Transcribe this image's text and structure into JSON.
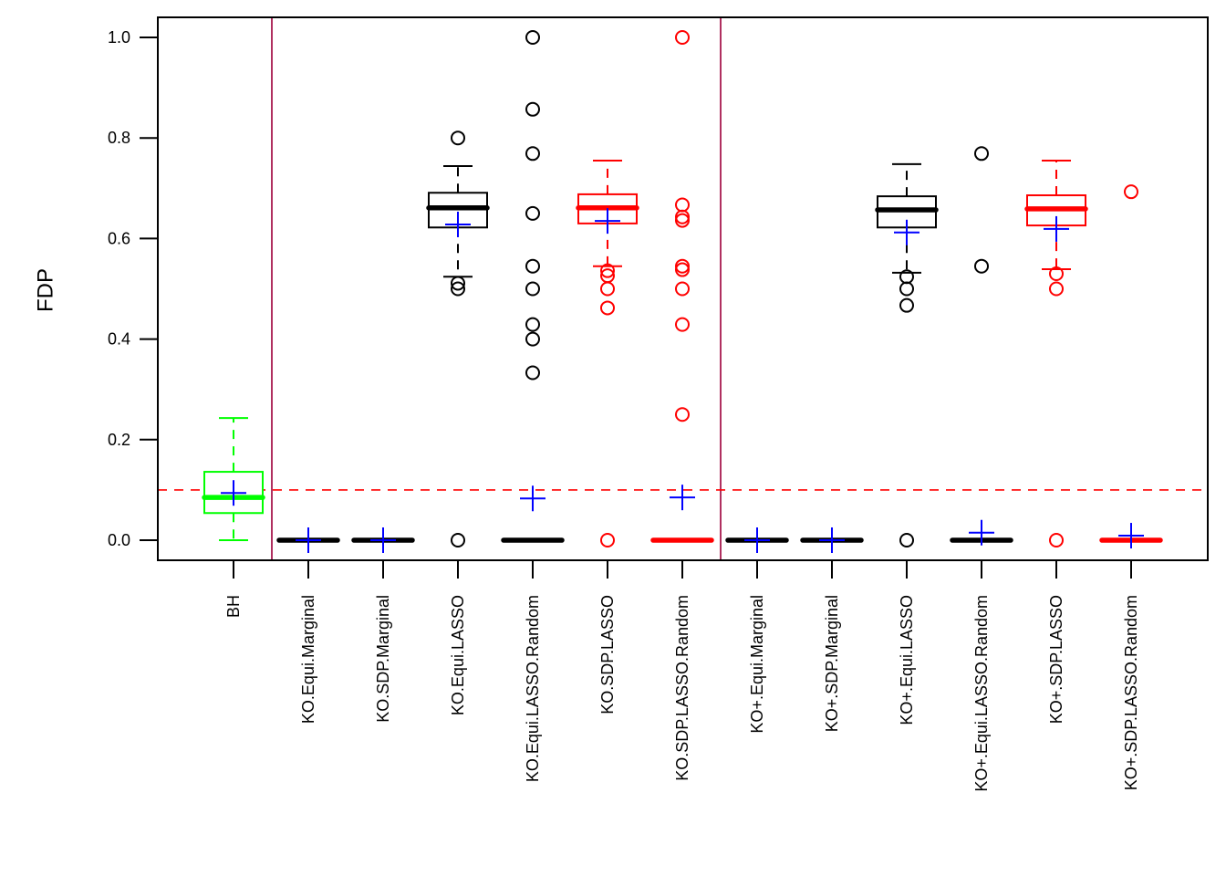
{
  "chart_data": {
    "type": "boxplot",
    "title": "",
    "xlabel": "",
    "ylabel": "FDP",
    "ylim": [
      -0.04,
      1.04
    ],
    "yticks": [
      0.0,
      0.2,
      0.4,
      0.6,
      0.8,
      1.0
    ],
    "ytick_labels": [
      "0.0",
      "0.2",
      "0.4",
      "0.6",
      "0.8",
      "1.0"
    ],
    "grid": false,
    "legend": null,
    "reference_line": {
      "y": 0.1,
      "style": "dashed",
      "color": "#ff0000"
    },
    "group_separators_after_index": [
      0,
      6
    ],
    "separator_color": "#b03060",
    "mean_marker_color": "#0000ff",
    "categories": [
      "BH",
      "KO.Equi.Marginal",
      "KO.SDP.Marginal",
      "KO.Equi.LASSO",
      "KO.Equi.LASSO.Random",
      "KO.SDP.LASSO",
      "KO.SDP.LASSO.Random",
      "KO+.Equi.Marginal",
      "KO+.SDP.Marginal",
      "KO+.Equi.LASSO",
      "KO+.Equi.LASSO.Random",
      "KO+.SDP.LASSO",
      "KO+.SDP.LASSO.Random"
    ],
    "series": [
      {
        "name": "BH",
        "color": "#00ff00",
        "whisker_low": 0.0,
        "q1": 0.054,
        "median": 0.085,
        "q3": 0.136,
        "whisker_high": 0.243,
        "mean": 0.094,
        "outliers": []
      },
      {
        "name": "KO.Equi.Marginal",
        "color": "#000000",
        "whisker_low": 0.0,
        "q1": 0.0,
        "median": 0.0,
        "q3": 0.0,
        "whisker_high": 0.0,
        "mean": 0.0,
        "outliers": []
      },
      {
        "name": "KO.SDP.Marginal",
        "color": "#000000",
        "whisker_low": 0.0,
        "q1": 0.0,
        "median": 0.0,
        "q3": 0.0,
        "whisker_high": 0.0,
        "mean": 0.0,
        "outliers": []
      },
      {
        "name": "KO.Equi.LASSO",
        "color": "#000000",
        "whisker_low": 0.524,
        "q1": 0.622,
        "median": 0.661,
        "q3": 0.691,
        "whisker_high": 0.744,
        "mean": 0.628,
        "outliers": [
          0.8,
          0.511,
          0.5,
          0.0
        ]
      },
      {
        "name": "KO.Equi.LASSO.Random",
        "color": "#000000",
        "whisker_low": 0.0,
        "q1": 0.0,
        "median": 0.0,
        "q3": 0.0,
        "whisker_high": 0.0,
        "mean": 0.083,
        "outliers": [
          1.0,
          0.857,
          0.769,
          0.65,
          0.545,
          0.5,
          0.429,
          0.4,
          0.333
        ]
      },
      {
        "name": "KO.SDP.LASSO",
        "color": "#ff0000",
        "whisker_low": 0.545,
        "q1": 0.63,
        "median": 0.661,
        "q3": 0.688,
        "whisker_high": 0.755,
        "mean": 0.635,
        "outliers": [
          0.536,
          0.526,
          0.5,
          0.462,
          0.0
        ]
      },
      {
        "name": "KO.SDP.LASSO.Random",
        "color": "#ff0000",
        "whisker_low": 0.0,
        "q1": 0.0,
        "median": 0.0,
        "q3": 0.0,
        "whisker_high": 0.0,
        "mean": 0.085,
        "outliers": [
          1.0,
          0.667,
          0.643,
          0.636,
          0.545,
          0.538,
          0.5,
          0.429,
          0.25
        ]
      },
      {
        "name": "KO+.Equi.Marginal",
        "color": "#000000",
        "whisker_low": 0.0,
        "q1": 0.0,
        "median": 0.0,
        "q3": 0.0,
        "whisker_high": 0.0,
        "mean": 0.0,
        "outliers": []
      },
      {
        "name": "KO+.SDP.Marginal",
        "color": "#000000",
        "whisker_low": 0.0,
        "q1": 0.0,
        "median": 0.0,
        "q3": 0.0,
        "whisker_high": 0.0,
        "mean": 0.0,
        "outliers": []
      },
      {
        "name": "KO+.Equi.LASSO",
        "color": "#000000",
        "whisker_low": 0.532,
        "q1": 0.622,
        "median": 0.657,
        "q3": 0.684,
        "whisker_high": 0.748,
        "mean": 0.612,
        "outliers": [
          0.524,
          0.5,
          0.467,
          0.0
        ]
      },
      {
        "name": "KO+.Equi.LASSO.Random",
        "color": "#000000",
        "whisker_low": 0.0,
        "q1": 0.0,
        "median": 0.0,
        "q3": 0.0,
        "whisker_high": 0.0,
        "mean": 0.015,
        "outliers": [
          0.769,
          0.545
        ]
      },
      {
        "name": "KO+.SDP.LASSO",
        "color": "#ff0000",
        "whisker_low": 0.539,
        "q1": 0.626,
        "median": 0.659,
        "q3": 0.686,
        "whisker_high": 0.755,
        "mean": 0.619,
        "outliers": [
          0.53,
          0.5,
          0.0
        ]
      },
      {
        "name": "KO+.SDP.LASSO.Random",
        "color": "#ff0000",
        "whisker_low": 0.0,
        "q1": 0.0,
        "median": 0.0,
        "q3": 0.0,
        "whisker_high": 0.0,
        "mean": 0.009,
        "outliers": [
          0.693
        ]
      }
    ]
  }
}
